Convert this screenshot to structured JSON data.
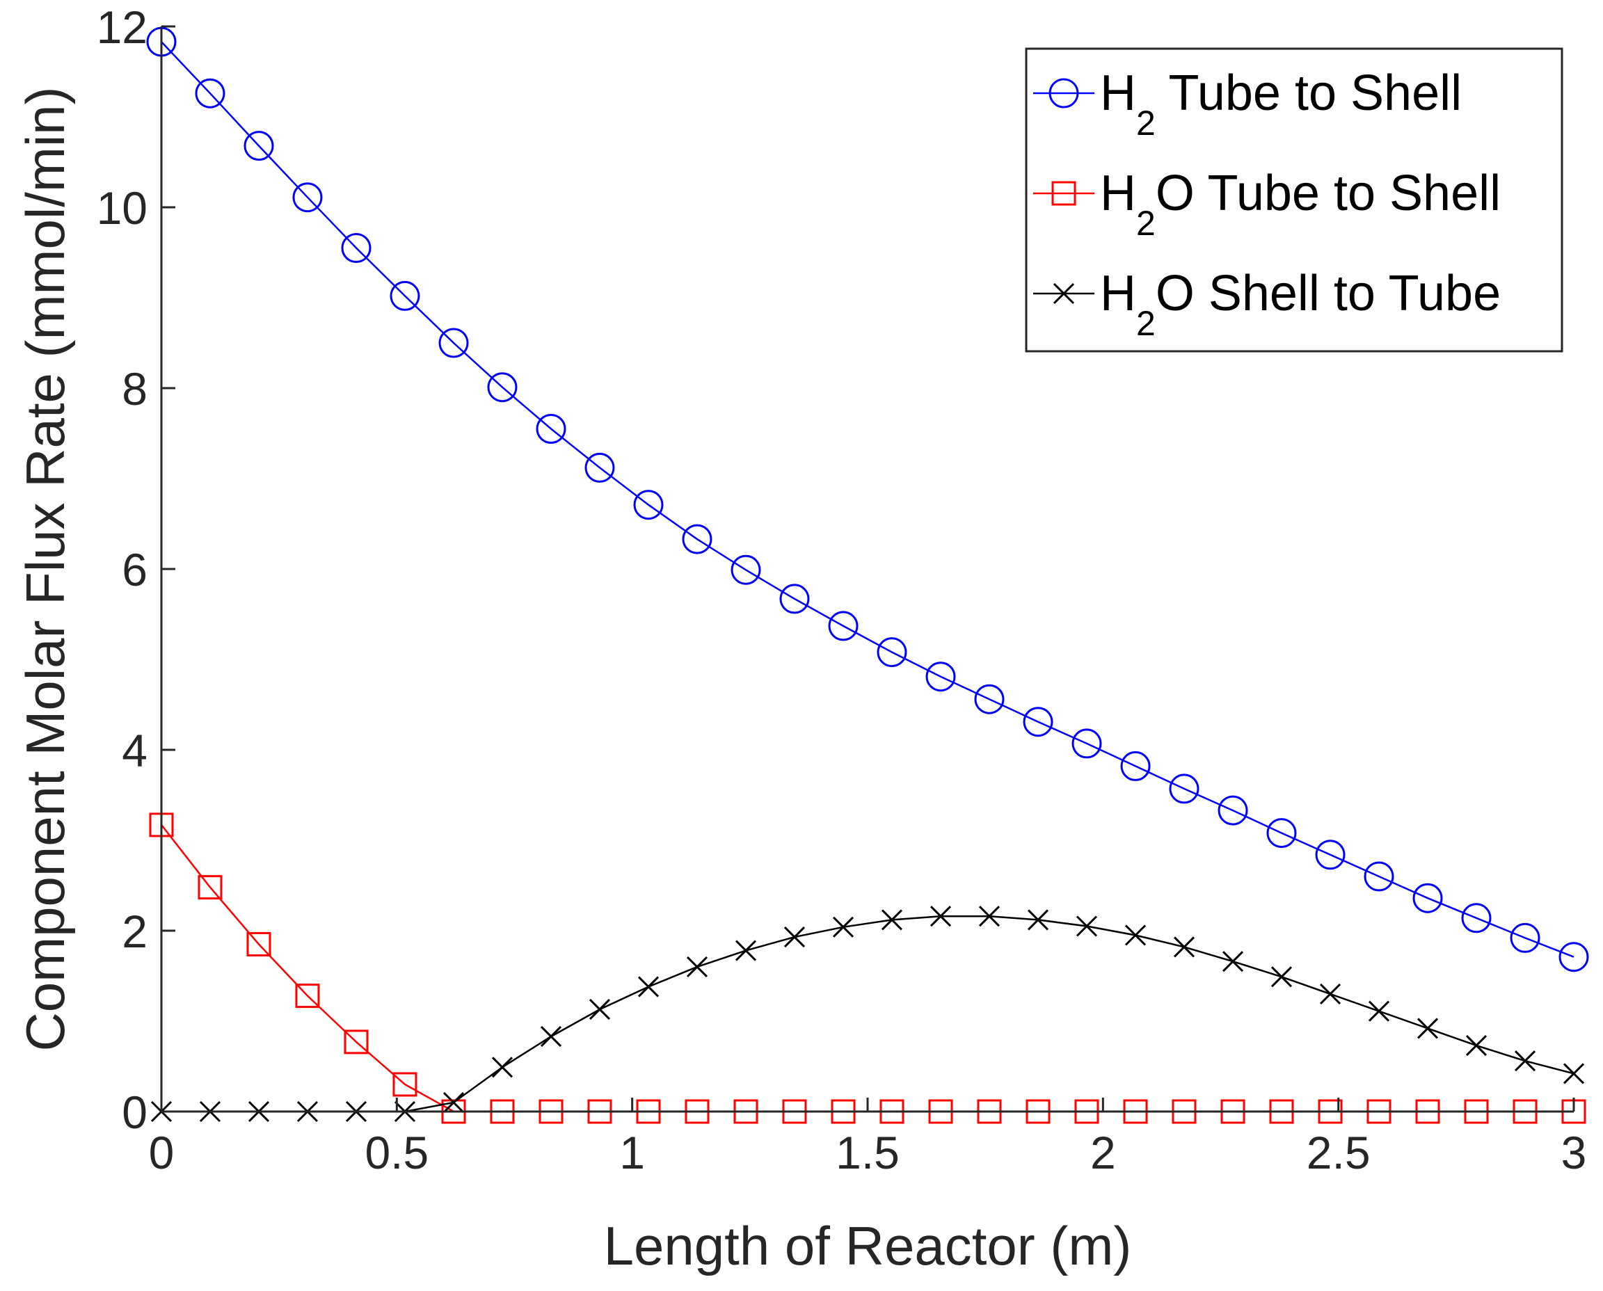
{
  "chart_data": {
    "type": "line",
    "xlabel": "Length of Reactor (m)",
    "ylabel": "Component Molar Flux Rate (mmol/min)",
    "xlim": [
      0,
      3
    ],
    "ylim": [
      0,
      12
    ],
    "xticks": [
      0,
      0.5,
      1,
      1.5,
      2,
      2.5,
      3
    ],
    "xtick_labels": [
      "0",
      "0.5",
      "1",
      "1.5",
      "2",
      "2.5",
      "3"
    ],
    "yticks": [
      0,
      2,
      4,
      6,
      8,
      10,
      12
    ],
    "ytick_labels": [
      "0",
      "2",
      "4",
      "6",
      "8",
      "10",
      "12"
    ],
    "grid": false,
    "legend_position": "top-right",
    "x": [
      0,
      0.1034,
      0.2069,
      0.3103,
      0.4138,
      0.5172,
      0.6207,
      0.7241,
      0.8276,
      0.931,
      1.0345,
      1.1379,
      1.2414,
      1.3448,
      1.4483,
      1.5517,
      1.6552,
      1.7586,
      1.8621,
      1.9655,
      2.069,
      2.1724,
      2.2759,
      2.3793,
      2.4828,
      2.5862,
      2.6897,
      2.7931,
      2.8966,
      3.0
    ],
    "series": [
      {
        "name": "H2 Tube to Shell",
        "label_main": "H",
        "label_sub": "2",
        "label_rest": " Tube to Shell",
        "color": "#0000ff",
        "marker": "circle",
        "values": [
          11.83,
          11.26,
          10.68,
          10.11,
          9.55,
          9.02,
          8.5,
          8.01,
          7.55,
          7.12,
          6.71,
          6.33,
          5.99,
          5.67,
          5.37,
          5.08,
          4.81,
          4.56,
          4.31,
          4.07,
          3.82,
          3.57,
          3.33,
          3.08,
          2.84,
          2.6,
          2.36,
          2.14,
          1.92,
          1.71
        ]
      },
      {
        "name": "H2O Tube to Shell",
        "label_main": "H",
        "label_sub": "2",
        "label_rest": "O Tube to Shell",
        "color": "#ff0000",
        "marker": "square",
        "values": [
          3.17,
          2.48,
          1.85,
          1.28,
          0.77,
          0.3,
          0,
          0,
          0,
          0,
          0,
          0,
          0,
          0,
          0,
          0,
          0,
          0,
          0,
          0,
          0,
          0,
          0,
          0,
          0,
          0,
          0,
          0,
          0,
          0
        ]
      },
      {
        "name": "H2O Shell to Tube",
        "label_main": "H",
        "label_sub": "2",
        "label_rest": "O Shell to Tube",
        "color": "#000000",
        "marker": "x",
        "values": [
          0,
          0,
          0,
          0,
          0,
          0,
          0.1,
          0.49,
          0.83,
          1.13,
          1.38,
          1.6,
          1.78,
          1.93,
          2.04,
          2.12,
          2.16,
          2.16,
          2.12,
          2.05,
          1.95,
          1.82,
          1.66,
          1.49,
          1.3,
          1.11,
          0.92,
          0.73,
          0.56,
          0.42
        ]
      }
    ]
  }
}
